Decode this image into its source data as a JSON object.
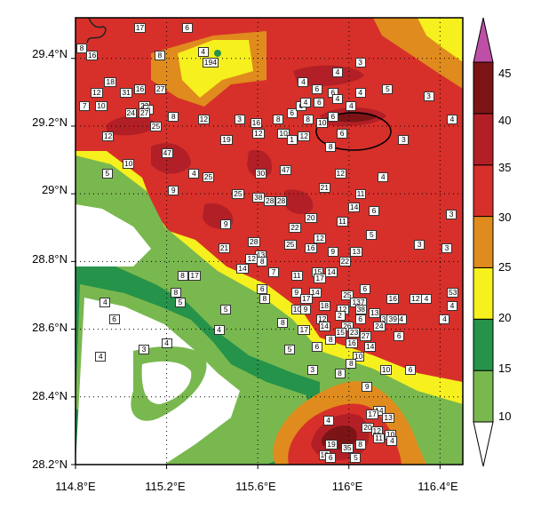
{
  "map": {
    "y_ticks": [
      "29.4°N",
      "29.2°N",
      "29°N",
      "28.8°N",
      "28.6°N",
      "28.4°N",
      "28.2°N"
    ],
    "x_ticks": [
      "114.8°E",
      "115.2°E",
      "115.6°E",
      "116°E",
      "116.4°E"
    ],
    "lon_range": [
      114.8,
      116.5
    ],
    "lat_range": [
      28.2,
      29.52
    ],
    "highlight": "ellipse around the strongest echo near 116.0°E, 29.2°N"
  },
  "colorbar": {
    "levels": [
      "10",
      "15",
      "20",
      "25",
      "30",
      "35",
      "40",
      "45"
    ],
    "colors": [
      "#ffffff",
      "#79b84f",
      "#25934a",
      "#f6f01e",
      "#e08b1d",
      "#d7302a",
      "#b31f26",
      "#7c1416",
      "#bf4fa6"
    ]
  },
  "stations": [
    {
      "v": "8",
      "lon": 114.81,
      "lat": 29.43
    },
    {
      "v": "16",
      "lon": 114.87,
      "lat": 29.41
    },
    {
      "v": "17",
      "lon": 115.08,
      "lat": 29.49
    },
    {
      "v": "6",
      "lon": 115.29,
      "lat": 29.49
    },
    {
      "v": "8",
      "lon": 115.17,
      "lat": 29.41
    },
    {
      "v": "4",
      "lon": 115.36,
      "lat": 29.42
    },
    {
      "v": "194",
      "lon": 115.38,
      "lat": 29.39
    },
    {
      "v": "18",
      "lon": 114.95,
      "lat": 29.33
    },
    {
      "v": "16",
      "lon": 115.08,
      "lat": 29.31
    },
    {
      "v": "27",
      "lon": 115.17,
      "lat": 29.31
    },
    {
      "v": "12",
      "lon": 114.89,
      "lat": 29.3
    },
    {
      "v": "31",
      "lon": 115.02,
      "lat": 29.3
    },
    {
      "v": "7",
      "lon": 114.84,
      "lat": 29.26
    },
    {
      "v": "10",
      "lon": 114.91,
      "lat": 29.26
    },
    {
      "v": "23",
      "lon": 115.1,
      "lat": 29.26
    },
    {
      "v": "6",
      "lon": 115.12,
      "lat": 29.25
    },
    {
      "v": "24",
      "lon": 115.04,
      "lat": 29.24
    },
    {
      "v": "27",
      "lon": 115.1,
      "lat": 29.24
    },
    {
      "v": "8",
      "lon": 115.23,
      "lat": 29.23
    },
    {
      "v": "12",
      "lon": 115.36,
      "lat": 29.22
    },
    {
      "v": "25",
      "lon": 115.15,
      "lat": 29.2
    },
    {
      "v": "12",
      "lon": 114.94,
      "lat": 29.17
    },
    {
      "v": "3",
      "lon": 115.52,
      "lat": 29.22
    },
    {
      "v": "16",
      "lon": 115.59,
      "lat": 29.21
    },
    {
      "v": "8",
      "lon": 115.69,
      "lat": 29.22
    },
    {
      "v": "6",
      "lon": 115.75,
      "lat": 29.24
    },
    {
      "v": "12",
      "lon": 115.6,
      "lat": 29.18
    },
    {
      "v": "10",
      "lon": 115.71,
      "lat": 29.18
    },
    {
      "v": "1",
      "lon": 115.75,
      "lat": 29.16
    },
    {
      "v": "12",
      "lon": 115.8,
      "lat": 29.17
    },
    {
      "v": "19",
      "lon": 115.46,
      "lat": 29.16
    },
    {
      "v": "8",
      "lon": 115.82,
      "lat": 29.22
    },
    {
      "v": "10",
      "lon": 115.88,
      "lat": 29.21
    },
    {
      "v": "6",
      "lon": 115.93,
      "lat": 29.23
    },
    {
      "v": "6",
      "lon": 115.79,
      "lat": 29.26
    },
    {
      "v": "4",
      "lon": 115.81,
      "lat": 29.27
    },
    {
      "v": "6",
      "lon": 115.87,
      "lat": 29.27
    },
    {
      "v": "4",
      "lon": 115.8,
      "lat": 29.33
    },
    {
      "v": "6",
      "lon": 115.93,
      "lat": 29.3
    },
    {
      "v": "4",
      "lon": 116.05,
      "lat": 29.3
    },
    {
      "v": "5",
      "lon": 116.17,
      "lat": 29.31
    },
    {
      "v": "6",
      "lon": 115.86,
      "lat": 29.31
    },
    {
      "v": "4",
      "lon": 115.95,
      "lat": 29.36
    },
    {
      "v": "3",
      "lon": 116.05,
      "lat": 29.39
    },
    {
      "v": "4",
      "lon": 115.95,
      "lat": 29.28
    },
    {
      "v": "4",
      "lon": 116.01,
      "lat": 29.26
    },
    {
      "v": "3",
      "lon": 116.35,
      "lat": 29.29
    },
    {
      "v": "6",
      "lon": 115.97,
      "lat": 29.18
    },
    {
      "v": "3",
      "lon": 116.24,
      "lat": 29.16
    },
    {
      "v": "4",
      "lon": 116.47,
      "lat": 29.22
    },
    {
      "v": "8",
      "lon": 115.92,
      "lat": 29.14
    },
    {
      "v": "10",
      "lon": 115.03,
      "lat": 29.09
    },
    {
      "v": "47",
      "lon": 115.2,
      "lat": 29.12
    },
    {
      "v": "5",
      "lon": 114.94,
      "lat": 29.06
    },
    {
      "v": "4",
      "lon": 115.32,
      "lat": 29.06
    },
    {
      "v": "25",
      "lon": 115.38,
      "lat": 29.05
    },
    {
      "v": "30",
      "lon": 115.61,
      "lat": 29.06
    },
    {
      "v": "47",
      "lon": 115.72,
      "lat": 29.07
    },
    {
      "v": "12",
      "lon": 115.96,
      "lat": 29.06
    },
    {
      "v": "4",
      "lon": 116.15,
      "lat": 29.05
    },
    {
      "v": "9",
      "lon": 115.23,
      "lat": 29.01
    },
    {
      "v": "21",
      "lon": 115.89,
      "lat": 29.02
    },
    {
      "v": "11",
      "lon": 116.05,
      "lat": 29.0
    },
    {
      "v": "25",
      "lon": 115.51,
      "lat": 29.0
    },
    {
      "v": "38",
      "lon": 115.6,
      "lat": 28.99
    },
    {
      "v": "28",
      "lon": 115.65,
      "lat": 28.98
    },
    {
      "v": "28",
      "lon": 115.7,
      "lat": 28.98
    },
    {
      "v": "14",
      "lon": 116.02,
      "lat": 28.96
    },
    {
      "v": "6",
      "lon": 116.11,
      "lat": 28.95
    },
    {
      "v": "3",
      "lon": 116.45,
      "lat": 28.94
    },
    {
      "v": "9",
      "lon": 115.46,
      "lat": 28.91
    },
    {
      "v": "20",
      "lon": 115.83,
      "lat": 28.93
    },
    {
      "v": "11",
      "lon": 115.97,
      "lat": 28.92
    },
    {
      "v": "22",
      "lon": 115.76,
      "lat": 28.9
    },
    {
      "v": "28",
      "lon": 115.58,
      "lat": 28.86
    },
    {
      "v": "12",
      "lon": 115.87,
      "lat": 28.87
    },
    {
      "v": "5",
      "lon": 116.1,
      "lat": 28.88
    },
    {
      "v": "3",
      "lon": 116.31,
      "lat": 28.85
    },
    {
      "v": "3",
      "lon": 116.43,
      "lat": 28.84
    },
    {
      "v": "21",
      "lon": 115.45,
      "lat": 28.84
    },
    {
      "v": "25",
      "lon": 115.74,
      "lat": 28.85
    },
    {
      "v": "16",
      "lon": 115.83,
      "lat": 28.84
    },
    {
      "v": "9",
      "lon": 115.93,
      "lat": 28.83
    },
    {
      "v": "13",
      "lon": 116.03,
      "lat": 28.83
    },
    {
      "v": "13",
      "lon": 115.61,
      "lat": 28.82
    },
    {
      "v": "12",
      "lon": 115.57,
      "lat": 28.81
    },
    {
      "v": "8",
      "lon": 115.62,
      "lat": 28.8
    },
    {
      "v": "22",
      "lon": 115.98,
      "lat": 28.8
    },
    {
      "v": "14",
      "lon": 115.53,
      "lat": 28.78
    },
    {
      "v": "7",
      "lon": 115.67,
      "lat": 28.77
    },
    {
      "v": "11",
      "lon": 115.77,
      "lat": 28.76
    },
    {
      "v": "15",
      "lon": 115.86,
      "lat": 28.77
    },
    {
      "v": "14",
      "lon": 115.92,
      "lat": 28.77
    },
    {
      "v": "17",
      "lon": 115.87,
      "lat": 28.75
    },
    {
      "v": "8",
      "lon": 115.27,
      "lat": 28.76
    },
    {
      "v": "17",
      "lon": 115.32,
      "lat": 28.76
    },
    {
      "v": "6",
      "lon": 115.62,
      "lat": 28.72
    },
    {
      "v": "9",
      "lon": 115.77,
      "lat": 28.71
    },
    {
      "v": "14",
      "lon": 115.85,
      "lat": 28.71
    },
    {
      "v": "25",
      "lon": 115.99,
      "lat": 28.7
    },
    {
      "v": "6",
      "lon": 116.07,
      "lat": 28.72
    },
    {
      "v": "16",
      "lon": 116.19,
      "lat": 28.69
    },
    {
      "v": "12",
      "lon": 116.29,
      "lat": 28.69
    },
    {
      "v": "4",
      "lon": 116.34,
      "lat": 28.69
    },
    {
      "v": "53",
      "lon": 116.51,
      "lat": 28.71
    },
    {
      "v": "8",
      "lon": 115.24,
      "lat": 28.71
    },
    {
      "v": "5",
      "lon": 115.26,
      "lat": 28.68
    },
    {
      "v": "8",
      "lon": 115.63,
      "lat": 28.69
    },
    {
      "v": "17",
      "lon": 115.81,
      "lat": 28.69
    },
    {
      "v": "137",
      "lon": 116.03,
      "lat": 28.68
    },
    {
      "v": "4",
      "lon": 116.46,
      "lat": 28.67
    },
    {
      "v": "4",
      "lon": 114.93,
      "lat": 28.68
    },
    {
      "v": "5",
      "lon": 115.46,
      "lat": 28.66
    },
    {
      "v": "10",
      "lon": 115.77,
      "lat": 28.66
    },
    {
      "v": "9",
      "lon": 115.81,
      "lat": 28.66
    },
    {
      "v": "18",
      "lon": 115.89,
      "lat": 28.67
    },
    {
      "v": "12",
      "lon": 115.97,
      "lat": 28.66
    },
    {
      "v": "38",
      "lon": 116.05,
      "lat": 28.66
    },
    {
      "v": "13",
      "lon": 116.11,
      "lat": 28.65
    },
    {
      "v": "6",
      "lon": 116.05,
      "lat": 28.63
    },
    {
      "v": "4",
      "lon": 116.23,
      "lat": 28.63
    },
    {
      "v": "4",
      "lon": 116.42,
      "lat": 28.63
    },
    {
      "v": "12",
      "lon": 115.88,
      "lat": 28.63
    },
    {
      "v": "2",
      "lon": 115.96,
      "lat": 28.64
    },
    {
      "v": "36",
      "lon": 116.16,
      "lat": 28.63
    },
    {
      "v": "39",
      "lon": 116.19,
      "lat": 28.63
    },
    {
      "v": "8",
      "lon": 115.71,
      "lat": 28.62
    },
    {
      "v": "14",
      "lon": 115.89,
      "lat": 28.61
    },
    {
      "v": "26",
      "lon": 115.99,
      "lat": 28.61
    },
    {
      "v": "24",
      "lon": 116.13,
      "lat": 28.61
    },
    {
      "v": "6",
      "lon": 114.97,
      "lat": 28.63
    },
    {
      "v": "4",
      "lon": 115.43,
      "lat": 28.6
    },
    {
      "v": "17",
      "lon": 115.8,
      "lat": 28.6
    },
    {
      "v": "15",
      "lon": 115.96,
      "lat": 28.59
    },
    {
      "v": "23",
      "lon": 116.02,
      "lat": 28.59
    },
    {
      "v": "27",
      "lon": 116.07,
      "lat": 28.58
    },
    {
      "v": "6",
      "lon": 116.22,
      "lat": 28.58
    },
    {
      "v": "8",
      "lon": 115.92,
      "lat": 28.57
    },
    {
      "v": "16",
      "lon": 116.01,
      "lat": 28.56
    },
    {
      "v": "14",
      "lon": 116.09,
      "lat": 28.55
    },
    {
      "v": "4",
      "lon": 115.2,
      "lat": 28.56
    },
    {
      "v": "3",
      "lon": 115.1,
      "lat": 28.54
    },
    {
      "v": "5",
      "lon": 115.74,
      "lat": 28.54
    },
    {
      "v": "6",
      "lon": 115.86,
      "lat": 28.55
    },
    {
      "v": "4",
      "lon": 114.91,
      "lat": 28.52
    },
    {
      "v": "10",
      "lon": 116.04,
      "lat": 28.52
    },
    {
      "v": "8",
      "lon": 116.01,
      "lat": 28.5
    },
    {
      "v": "3",
      "lon": 115.84,
      "lat": 28.48
    },
    {
      "v": "8",
      "lon": 115.96,
      "lat": 28.47
    },
    {
      "v": "10",
      "lon": 116.16,
      "lat": 28.48
    },
    {
      "v": "6",
      "lon": 116.27,
      "lat": 28.48
    },
    {
      "v": "9",
      "lon": 116.08,
      "lat": 28.43
    },
    {
      "v": "14",
      "lon": 116.13,
      "lat": 28.36
    },
    {
      "v": "17",
      "lon": 116.1,
      "lat": 28.35
    },
    {
      "v": "13",
      "lon": 116.17,
      "lat": 28.34
    },
    {
      "v": "4",
      "lon": 115.91,
      "lat": 28.33
    },
    {
      "v": "20",
      "lon": 116.08,
      "lat": 28.31
    },
    {
      "v": "12",
      "lon": 116.12,
      "lat": 28.3
    },
    {
      "v": "10",
      "lon": 116.18,
      "lat": 28.29
    },
    {
      "v": "11",
      "lon": 116.13,
      "lat": 28.28
    },
    {
      "v": "4",
      "lon": 116.19,
      "lat": 28.27
    },
    {
      "v": "19",
      "lon": 115.92,
      "lat": 28.26
    },
    {
      "v": "35",
      "lon": 115.99,
      "lat": 28.25
    },
    {
      "v": "8",
      "lon": 116.05,
      "lat": 28.26
    },
    {
      "v": "10",
      "lon": 115.89,
      "lat": 28.23
    },
    {
      "v": "6",
      "lon": 115.92,
      "lat": 28.22
    },
    {
      "v": "5",
      "lon": 116.03,
      "lat": 28.22
    }
  ]
}
